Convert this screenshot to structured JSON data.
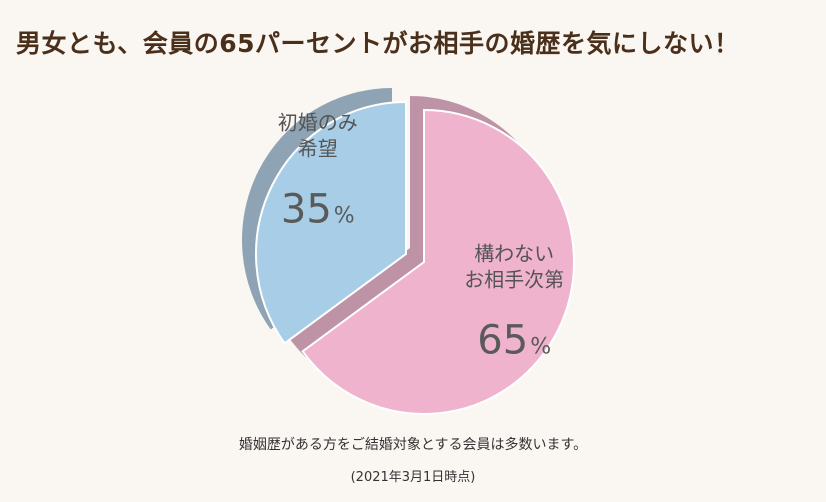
{
  "headline": "男女とも、会員の65パーセントがお相手の婚歴を気にしない！",
  "caption": {
    "note": "婚姻歴がある方をご結婚対象とする会員は多数います。",
    "date": "(2021年3月1日時点)"
  },
  "chart_data": {
    "type": "pie",
    "title": "",
    "unit": "%",
    "slices": [
      {
        "label_lines": [
          "構わない",
          "お相手次第"
        ],
        "value": 65,
        "color": "#efb3cd",
        "side_color": "#bf93a6"
      },
      {
        "label_lines": [
          "初婚のみ",
          "希望"
        ],
        "value": 35,
        "color": "#a8cde7",
        "side_color": "#8ea3b4"
      }
    ]
  }
}
